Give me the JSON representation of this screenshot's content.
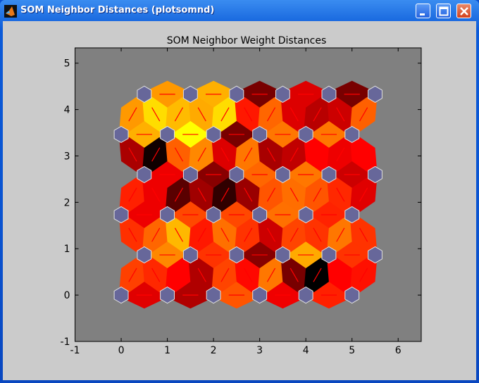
{
  "window": {
    "title": "SOM Neighbor Distances (plotsomnd)",
    "buttons": [
      "minimize",
      "maximize",
      "close"
    ]
  },
  "chart_data": {
    "type": "heatmap",
    "title": "SOM Neighbor Weight Distances",
    "xlabel": "",
    "ylabel": "",
    "xlim": [
      -1,
      6.5
    ],
    "ylim": [
      -1,
      5.33
    ],
    "xticks": [
      "-1",
      "0",
      "1",
      "2",
      "3",
      "4",
      "5",
      "6"
    ],
    "yticks": [
      "-1",
      "0",
      "1",
      "2",
      "3",
      "4",
      "5"
    ],
    "topology": "hexagonal",
    "grid_size": [
      6,
      6
    ],
    "neuron_color": "#67679a",
    "link_line_color": "#ff0000",
    "axes_background": "#808080",
    "colormap": "hot (darker = larger distance)",
    "horizontal_link_colors": [
      [
        "#e00000",
        "#b00000",
        "#ff5500",
        "#f00000",
        "#ff2000"
      ],
      [
        "#ff8800",
        "#ff3300",
        "#880000",
        "#ffaa00",
        "#ff3300"
      ],
      [
        "#ee0000",
        "#ff4800",
        "#ff4800",
        "#ff7000",
        "#ff2200"
      ],
      [
        "#ee0000",
        "#880000",
        "#ff6600",
        "#ff7700",
        "#cc0000"
      ],
      [
        "#ffb000",
        "#ffff00",
        "#780000",
        "#ff7700",
        "#ff7700"
      ],
      [
        "#ff9900",
        "#ffb000",
        "#780000",
        "#dd0000",
        "#780000"
      ]
    ],
    "diagonal_link_colors": [
      [
        "#ff4000",
        "#ff2800",
        "#ff0000",
        "#b00000",
        "#ff4400",
        "#ff0800",
        "#ff7700",
        "#780000",
        "#000000",
        "#ff0000",
        "#ff1000"
      ],
      [
        "#ff3000",
        "#ff6600",
        "#ffb800",
        "#ff1800",
        "#ff7000",
        "#ff3300",
        "#cc0000",
        "#ff4400",
        "#ff3300",
        "#ff7700",
        "#ff3300"
      ],
      [
        "#ff2000",
        "#ee0000",
        "#5a0000",
        "#a00000",
        "#300000",
        "#9a0000",
        "#ff5500",
        "#ff6e00",
        "#ff5500",
        "#ff2800",
        "#e00000"
      ],
      [
        "#aa0000",
        "#100000",
        "#ff6000",
        "#ff8800",
        "#dd0000",
        "#ff7700",
        "#a80000",
        "#c00000",
        "#ff0000",
        "#ee0000",
        "#ff0000"
      ],
      [
        "#ff9900",
        "#ffdd00",
        "#ffbb00",
        "#ffaa00",
        "#ffdd00",
        "#ff1800",
        "#ff6600",
        "#dd0000",
        "#b80000",
        "#cc0000",
        "#ff6000"
      ]
    ]
  }
}
